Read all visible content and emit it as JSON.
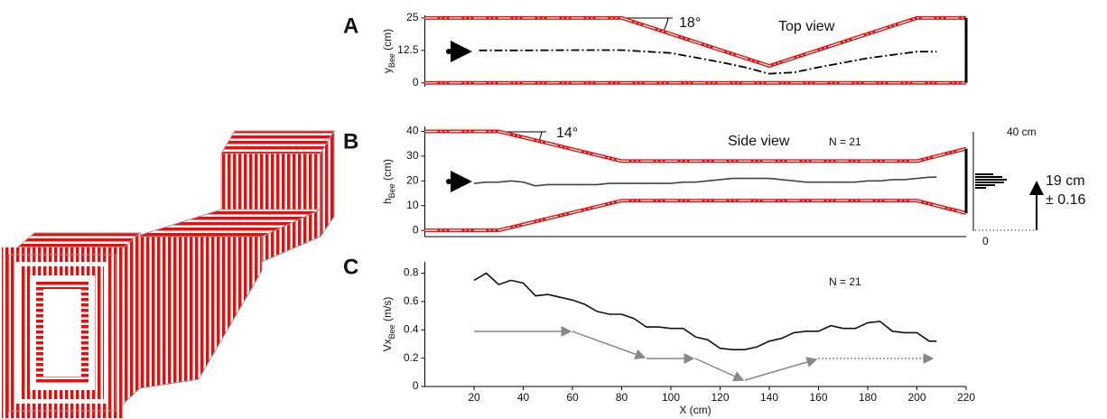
{
  "chart_data": [
    {
      "type": "line",
      "label": "A",
      "title": "Top view",
      "angle_label": "18°",
      "ylabel": {
        "main": "y",
        "sub": "Bee",
        "unit": " (cm)"
      },
      "xlim": [
        0,
        220
      ],
      "ylim": [
        -1.5,
        26
      ],
      "yticks": [
        0,
        12.5,
        25
      ],
      "walls": [
        {
          "x": [
            0,
            80,
            140,
            200,
            220
          ],
          "values": [
            25,
            25,
            6.5,
            25,
            25
          ]
        },
        {
          "x": [
            0,
            220
          ],
          "values": [
            0,
            0
          ]
        }
      ],
      "end_wall": {
        "x": 220,
        "values": [
          0,
          25
        ]
      },
      "series": [
        {
          "color": "#000000",
          "style": "dashdot",
          "x": [
            22,
            40,
            60,
            80,
            100,
            120,
            130,
            140,
            150,
            160,
            180,
            200,
            208
          ],
          "values": [
            12.5,
            12.5,
            12.6,
            12.6,
            11.5,
            8,
            6,
            3.5,
            4,
            6,
            9.5,
            12,
            12
          ]
        }
      ]
    },
    {
      "type": "line",
      "label": "B",
      "title": "Side view",
      "angle_label": "14°",
      "n_label": "N = 21",
      "ylabel": {
        "main": "h",
        "sub": "Bee",
        "unit": " (cm)"
      },
      "scale_top": "40 cm",
      "scale_bottom": "0",
      "mean_label": "19 cm",
      "sd_label": "± 0.16",
      "xlim": [
        0,
        220
      ],
      "ylim": [
        -2.5,
        42
      ],
      "yticks": [
        0,
        10,
        20,
        30,
        40
      ],
      "walls": [
        {
          "x": [
            0,
            30,
            80,
            200,
            220
          ],
          "values": [
            40,
            40,
            28,
            28,
            33
          ]
        },
        {
          "x": [
            0,
            30,
            80,
            200,
            220
          ],
          "values": [
            0,
            0,
            12,
            12,
            7
          ]
        }
      ],
      "end_wall": {
        "x": 220,
        "values": [
          7,
          33
        ]
      },
      "series": [
        {
          "color": "#444444",
          "style": "solid",
          "x": [
            20,
            25,
            30,
            35,
            40,
            45,
            50,
            55,
            60,
            65,
            70,
            75,
            80,
            85,
            90,
            95,
            100,
            105,
            110,
            115,
            120,
            125,
            130,
            135,
            140,
            145,
            150,
            155,
            160,
            165,
            170,
            175,
            180,
            185,
            190,
            195,
            200,
            205,
            208
          ],
          "values": [
            19,
            19.5,
            19.5,
            20,
            19.5,
            18,
            18.5,
            18.5,
            18.5,
            18.5,
            18.5,
            19,
            19,
            19,
            19,
            19,
            19,
            19.5,
            19.5,
            20,
            20.5,
            21,
            21,
            21,
            21,
            20.5,
            20,
            19.5,
            19.5,
            19.5,
            19.5,
            19.5,
            20,
            20,
            20.5,
            20.5,
            21,
            21.5,
            21.5
          ]
        }
      ]
    },
    {
      "type": "line",
      "label": "C",
      "n_label": "N = 21",
      "xlabel": "X (cm)",
      "ylabel": {
        "main": "Vx",
        "sub": "Bee",
        "unit": " (m/s)"
      },
      "xlim": [
        0,
        220
      ],
      "xticks": [
        20,
        40,
        60,
        80,
        100,
        120,
        140,
        160,
        180,
        200,
        220
      ],
      "ylim": [
        0,
        0.88
      ],
      "yticks": [
        0,
        0.2,
        0.4,
        0.6,
        0.8
      ],
      "series": [
        {
          "color": "#111111",
          "style": "solid",
          "x": [
            20,
            25,
            30,
            35,
            40,
            45,
            50,
            55,
            60,
            65,
            70,
            75,
            80,
            85,
            90,
            95,
            100,
            105,
            110,
            115,
            120,
            125,
            130,
            135,
            140,
            145,
            150,
            155,
            160,
            165,
            170,
            175,
            180,
            185,
            190,
            195,
            200,
            205,
            208
          ],
          "values": [
            0.75,
            0.8,
            0.72,
            0.75,
            0.73,
            0.64,
            0.65,
            0.63,
            0.61,
            0.58,
            0.53,
            0.51,
            0.51,
            0.48,
            0.42,
            0.42,
            0.41,
            0.41,
            0.35,
            0.33,
            0.27,
            0.26,
            0.26,
            0.28,
            0.32,
            0.34,
            0.38,
            0.39,
            0.39,
            0.43,
            0.41,
            0.41,
            0.45,
            0.46,
            0.39,
            0.38,
            0.38,
            0.32,
            0.32
          ]
        }
      ]
    }
  ]
}
